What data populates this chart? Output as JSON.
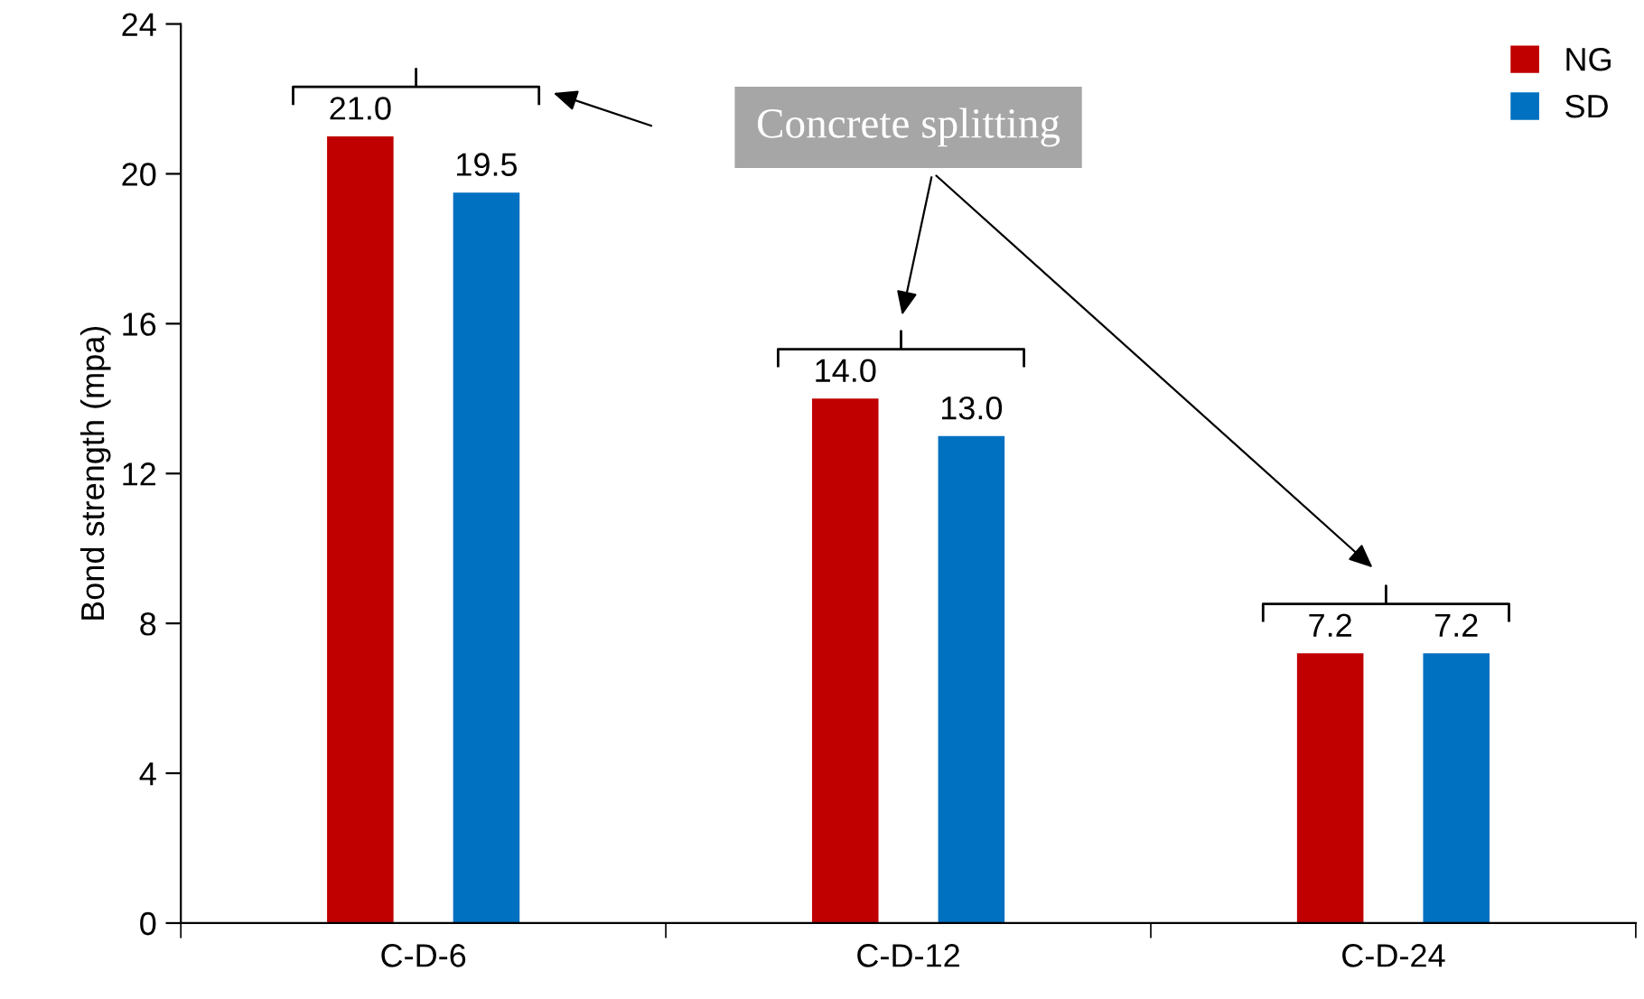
{
  "chart_data": {
    "type": "bar",
    "ylabel": "Bond strength (mpa)",
    "categories": [
      "C-D-6",
      "C-D-12",
      "C-D-24"
    ],
    "series": [
      {
        "name": "NG",
        "color": "#c00000",
        "values": [
          21.0,
          14.0,
          7.2
        ],
        "value_labels": [
          "21.0",
          "14.0",
          "7.2"
        ]
      },
      {
        "name": "SD",
        "color": "#0070c0",
        "values": [
          19.5,
          13.0,
          7.2
        ],
        "value_labels": [
          "19.5",
          "13.0",
          "7.2"
        ]
      }
    ],
    "ylim": [
      0,
      24
    ],
    "yticks": [
      0,
      4,
      8,
      12,
      16,
      20,
      24
    ],
    "grid": false,
    "legend": "top right",
    "annotations": [
      "Concrete splitting"
    ]
  }
}
